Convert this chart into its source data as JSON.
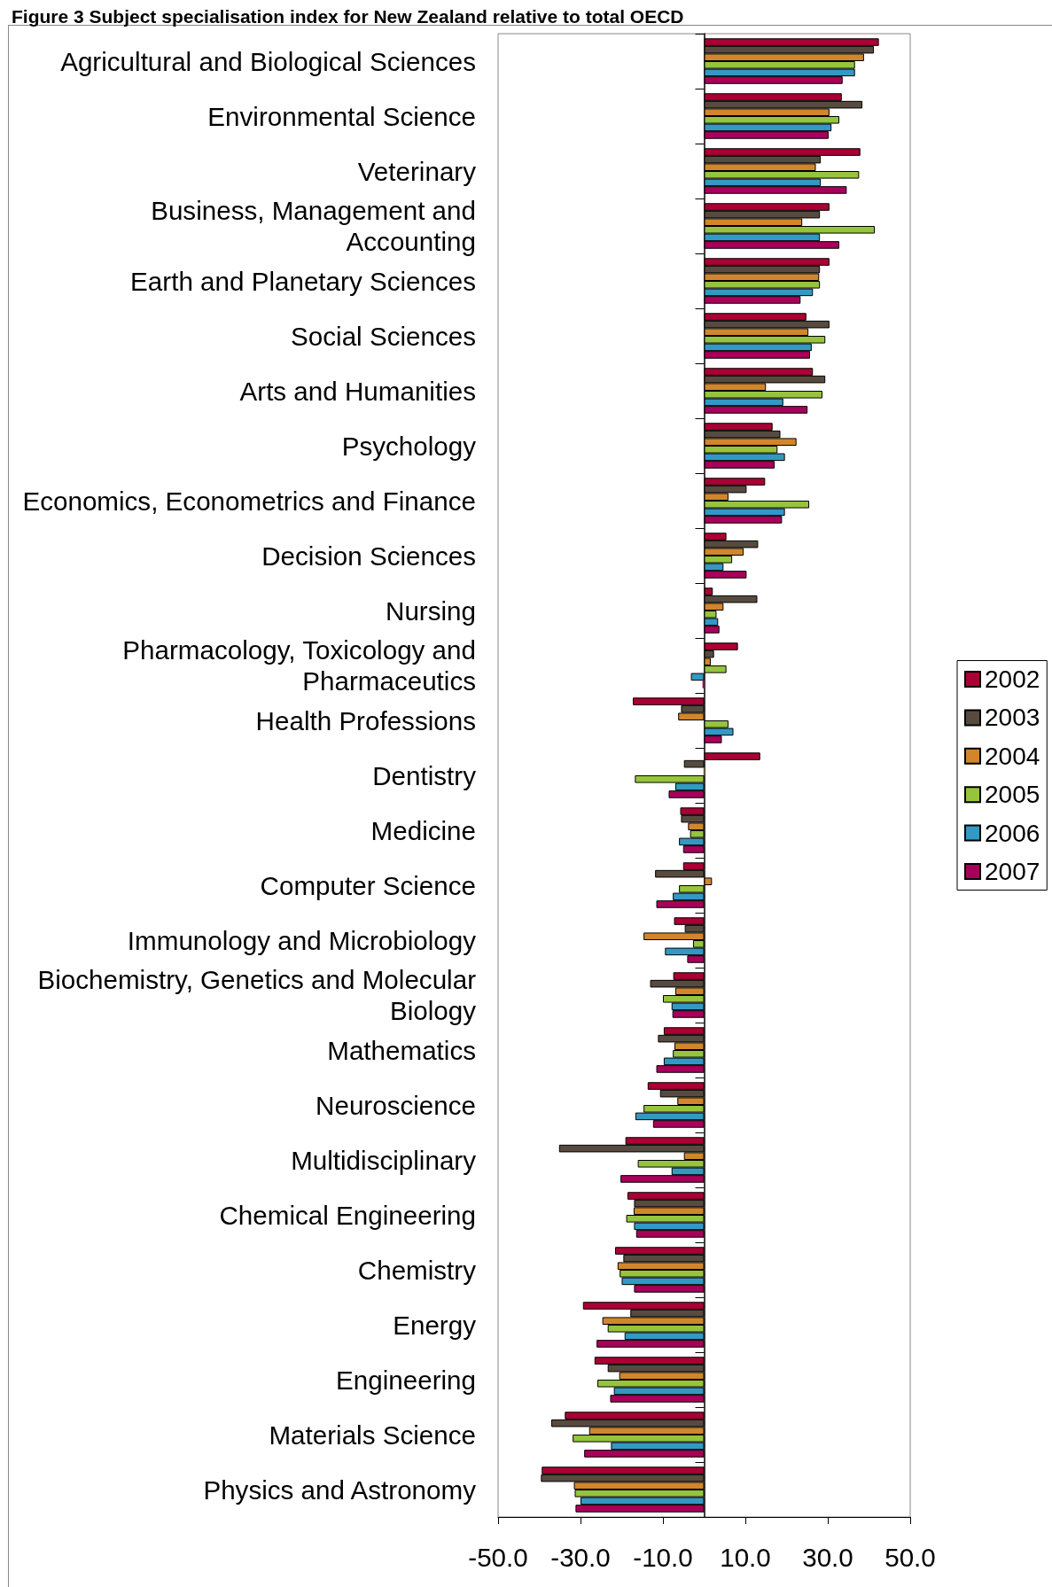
{
  "chart_data": {
    "type": "bar",
    "orientation": "horizontal",
    "title": "Figure 3 Subject specialisation index for New Zealand relative to total OECD",
    "categories": [
      "Agricultural and Biological Sciences",
      "Environmental Science",
      "Veterinary",
      "Business, Management and Accounting",
      "Earth and Planetary Sciences",
      "Social Sciences",
      "Arts and Humanities",
      "Psychology",
      "Economics, Econometrics and Finance",
      "Decision Sciences",
      "Nursing",
      "Pharmacology, Toxicology and Pharmaceutics",
      "Health Professions",
      "Dentistry",
      "Medicine",
      "Computer Science",
      "Immunology and Microbiology",
      "Biochemistry, Genetics and Molecular Biology",
      "Mathematics",
      "Neuroscience",
      "Multidisciplinary",
      "Chemical Engineering",
      "Chemistry",
      "Energy",
      "Engineering",
      "Materials Science",
      "Physics and Astronomy"
    ],
    "series": [
      {
        "name": "2002",
        "color": "#aa0033",
        "values": [
          42.4,
          33.4,
          37.9,
          30.4,
          30.4,
          24.8,
          26.4,
          16.6,
          14.8,
          5.4,
          2.1,
          8.2,
          -17.3,
          13.6,
          -5.8,
          -5.1,
          -7.3,
          -7.5,
          -9.8,
          -13.7,
          -19.1,
          -18.6,
          -21.6,
          -29.4,
          -26.6,
          -33.8,
          -39.4
        ]
      },
      {
        "name": "2003",
        "color": "#574b3f",
        "values": [
          41.2,
          38.4,
          28.3,
          28.1,
          28.1,
          30.4,
          29.4,
          18.5,
          10.3,
          13.1,
          12.9,
          2.4,
          -5.6,
          -4.9,
          -5.6,
          -11.9,
          -4.7,
          -13.1,
          -11.2,
          -10.7,
          -35.2,
          -17.0,
          -19.6,
          -17.9,
          -23.4,
          -37.1,
          -39.6
        ]
      },
      {
        "name": "2004",
        "color": "#d2862b",
        "values": [
          38.8,
          30.4,
          27.1,
          23.8,
          27.9,
          25.3,
          15.0,
          22.4,
          5.9,
          9.6,
          4.7,
          1.6,
          -6.3,
          -0.2,
          -3.9,
          1.9,
          -14.7,
          -7.0,
          -7.2,
          -6.5,
          -4.9,
          -17.1,
          -21.0,
          -24.7,
          -20.6,
          -27.9,
          -31.6
        ]
      },
      {
        "name": "2005",
        "color": "#96c43c",
        "values": [
          36.6,
          32.8,
          37.6,
          41.4,
          28.1,
          29.4,
          28.7,
          17.8,
          25.5,
          6.8,
          3.0,
          5.4,
          5.9,
          -16.8,
          -3.4,
          -6.1,
          -2.7,
          -10.0,
          -7.6,
          -14.7,
          -16.1,
          -18.9,
          -20.5,
          -23.4,
          -25.9,
          -31.9,
          -31.4
        ]
      },
      {
        "name": "2006",
        "color": "#3399c4",
        "values": [
          36.6,
          30.9,
          28.3,
          28.1,
          26.4,
          26.1,
          19.2,
          19.6,
          19.6,
          4.7,
          3.4,
          -3.2,
          7.1,
          -7.0,
          -6.1,
          -7.6,
          -9.5,
          -7.9,
          -9.8,
          -16.7,
          -7.9,
          -17.0,
          -20.0,
          -19.3,
          -21.9,
          -22.6,
          -30.0
        ]
      },
      {
        "name": "2007",
        "color": "#a8005a",
        "values": [
          33.6,
          30.2,
          34.6,
          32.8,
          23.4,
          25.7,
          25.1,
          17.1,
          18.9,
          10.3,
          3.7,
          -0.4,
          4.3,
          -8.6,
          -5.1,
          -11.6,
          -4.1,
          -7.7,
          -11.6,
          -12.4,
          -20.3,
          -16.5,
          -17.0,
          -26.1,
          -22.8,
          -29.1,
          -31.2
        ]
      }
    ],
    "xlim": [
      -50,
      50
    ],
    "xticks": [
      {
        "value": -50,
        "label": "-50.0"
      },
      {
        "value": -30,
        "label": "-30.0"
      },
      {
        "value": -10,
        "label": "-10.0"
      },
      {
        "value": 10,
        "label": "10.0"
      },
      {
        "value": 30,
        "label": "30.0"
      },
      {
        "value": 50,
        "label": "50.0"
      }
    ],
    "legend": "right"
  }
}
